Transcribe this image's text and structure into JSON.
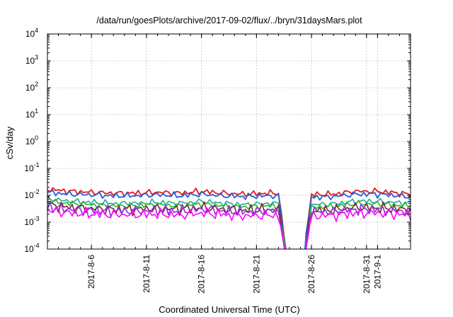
{
  "chart_data": {
    "type": "line",
    "title": "/data/run/goesPlots/archive/2017-09-02/flux/../bryn/31daysMars.plot",
    "xlabel": "Coordinated Universal Time (UTC)",
    "ylabel": "cSv/day",
    "yscale": "log",
    "ylim": [
      0.0001,
      10000
    ],
    "xlim": [
      "2017-08-02",
      "2017-09-04"
    ],
    "grid": true,
    "legend": "none",
    "y_ticks": [
      {
        "base": "10",
        "exp": "-4"
      },
      {
        "base": "10",
        "exp": "-3"
      },
      {
        "base": "10",
        "exp": "-2"
      },
      {
        "base": "10",
        "exp": "-1"
      },
      {
        "base": "10",
        "exp": "0"
      },
      {
        "base": "10",
        "exp": "1"
      },
      {
        "base": "10",
        "exp": "2"
      },
      {
        "base": "10",
        "exp": "3"
      },
      {
        "base": "10",
        "exp": "4"
      }
    ],
    "x_ticks": [
      "2017-8-6",
      "2017-8-11",
      "2017-8-16",
      "2017-8-21",
      "2017-8-26",
      "2017-8-31",
      "2017-9-1"
    ],
    "data_gap": [
      "2017-08-24",
      "2017-08-25"
    ],
    "series": [
      {
        "color": "#e41a1c",
        "x": [
          "2017-08-02",
          "2017-08-04",
          "2017-08-06",
          "2017-08-08",
          "2017-08-10",
          "2017-08-12",
          "2017-08-14",
          "2017-08-16",
          "2017-08-18",
          "2017-08-20",
          "2017-08-22",
          "2017-08-23",
          "2017-08-24",
          "2017-08-25",
          "2017-08-26",
          "2017-08-28",
          "2017-08-30",
          "2017-09-01",
          "2017-09-04"
        ],
        "values": [
          0.017,
          0.014,
          0.013,
          0.012,
          0.012,
          0.013,
          0.012,
          0.014,
          0.012,
          0.011,
          0.012,
          0.012,
          1e-05,
          1e-05,
          0.0105,
          0.011,
          0.014,
          0.014,
          0.011
        ]
      },
      {
        "color": "#1f5fd6",
        "x": [
          "2017-08-02",
          "2017-08-04",
          "2017-08-06",
          "2017-08-08",
          "2017-08-10",
          "2017-08-12",
          "2017-08-14",
          "2017-08-16",
          "2017-08-18",
          "2017-08-20",
          "2017-08-22",
          "2017-08-23",
          "2017-08-24",
          "2017-08-25",
          "2017-08-26",
          "2017-08-28",
          "2017-08-30",
          "2017-09-01",
          "2017-09-04"
        ],
        "values": [
          0.013,
          0.011,
          0.0105,
          0.0095,
          0.0097,
          0.0105,
          0.0095,
          0.011,
          0.0095,
          0.009,
          0.0095,
          0.0095,
          1e-05,
          1e-05,
          0.0085,
          0.009,
          0.011,
          0.011,
          0.009
        ]
      },
      {
        "color": "#1faa9f",
        "x": [
          "2017-08-02",
          "2017-08-04",
          "2017-08-06",
          "2017-08-08",
          "2017-08-10",
          "2017-08-12",
          "2017-08-14",
          "2017-08-16",
          "2017-08-18",
          "2017-08-20",
          "2017-08-22",
          "2017-08-23",
          "2017-08-24",
          "2017-08-25",
          "2017-08-26",
          "2017-08-28",
          "2017-08-30",
          "2017-09-01",
          "2017-09-04"
        ],
        "values": [
          0.0075,
          0.006,
          0.0055,
          0.005,
          0.005,
          0.0055,
          0.005,
          0.006,
          0.005,
          0.0045,
          0.005,
          0.005,
          1e-05,
          1e-05,
          0.0045,
          0.0048,
          0.006,
          0.006,
          0.005
        ]
      },
      {
        "color": "#2db52d",
        "x": [
          "2017-08-02",
          "2017-08-04",
          "2017-08-06",
          "2017-08-08",
          "2017-08-10",
          "2017-08-12",
          "2017-08-14",
          "2017-08-16",
          "2017-08-18",
          "2017-08-20",
          "2017-08-22",
          "2017-08-23",
          "2017-08-24",
          "2017-08-25",
          "2017-08-26",
          "2017-08-28",
          "2017-08-30",
          "2017-09-01",
          "2017-09-04"
        ],
        "values": [
          0.006,
          0.005,
          0.0045,
          0.004,
          0.0042,
          0.0045,
          0.004,
          0.0048,
          0.004,
          0.0037,
          0.004,
          0.004,
          1e-05,
          1e-05,
          0.0036,
          0.0038,
          0.0048,
          0.0048,
          0.004
        ]
      },
      {
        "color": "#7a2a2a",
        "x": [
          "2017-08-02",
          "2017-08-04",
          "2017-08-06",
          "2017-08-08",
          "2017-08-10",
          "2017-08-12",
          "2017-08-14",
          "2017-08-16",
          "2017-08-18",
          "2017-08-20",
          "2017-08-22",
          "2017-08-23",
          "2017-08-24",
          "2017-08-25",
          "2017-08-26",
          "2017-08-28",
          "2017-08-30",
          "2017-09-01",
          "2017-09-04"
        ],
        "values": [
          0.0045,
          0.0035,
          0.0032,
          0.003,
          0.003,
          0.0032,
          0.003,
          0.0035,
          0.003,
          0.0027,
          0.003,
          0.003,
          1e-05,
          1e-05,
          0.0027,
          0.0028,
          0.0035,
          0.0034,
          0.0029
        ]
      },
      {
        "color": "#8a2be2",
        "x": [
          "2017-08-02",
          "2017-08-04",
          "2017-08-06",
          "2017-08-08",
          "2017-08-10",
          "2017-08-12",
          "2017-08-14",
          "2017-08-16",
          "2017-08-18",
          "2017-08-20",
          "2017-08-22",
          "2017-08-23",
          "2017-08-24",
          "2017-08-25",
          "2017-08-26",
          "2017-08-28",
          "2017-08-30",
          "2017-09-01",
          "2017-09-04"
        ],
        "values": [
          0.0038,
          0.003,
          0.0028,
          0.0026,
          0.0026,
          0.0028,
          0.0026,
          0.003,
          0.0026,
          0.0024,
          0.0026,
          0.0026,
          1e-05,
          1e-05,
          0.0024,
          0.0025,
          0.003,
          0.003,
          0.0025
        ]
      },
      {
        "color": "#ff00ff",
        "x": [
          "2017-08-02",
          "2017-08-04",
          "2017-08-06",
          "2017-08-08",
          "2017-08-10",
          "2017-08-12",
          "2017-08-14",
          "2017-08-16",
          "2017-08-18",
          "2017-08-20",
          "2017-08-22",
          "2017-08-23",
          "2017-08-24",
          "2017-08-25",
          "2017-08-26",
          "2017-08-28",
          "2017-08-30",
          "2017-09-01",
          "2017-09-04"
        ],
        "values": [
          0.0028,
          0.0022,
          0.002,
          0.0019,
          0.0019,
          0.002,
          0.0018,
          0.0022,
          0.0019,
          0.0017,
          0.0018,
          0.0018,
          1e-05,
          1e-05,
          0.0017,
          0.0018,
          0.0022,
          0.0022,
          0.0018
        ]
      }
    ]
  }
}
